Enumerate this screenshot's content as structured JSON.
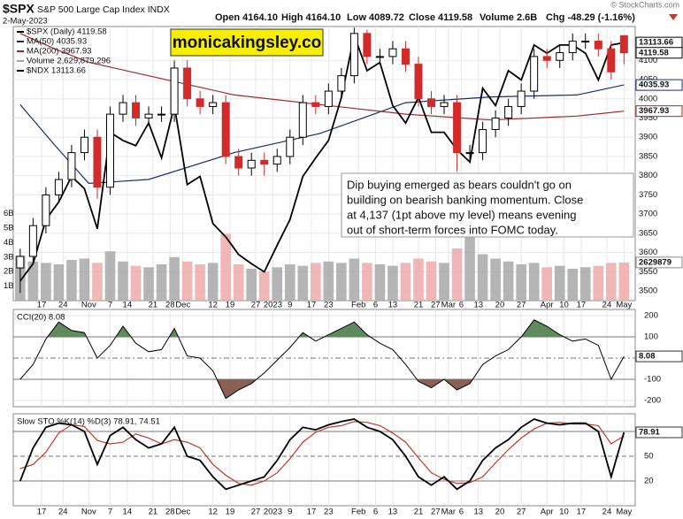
{
  "chart_data": {
    "type": "candlestick",
    "title": "$SPX",
    "subtitle": "S&P 500 Large Cap Index INDX",
    "date": "2-May-2023",
    "header": [
      "Open 4164.10",
      "High 4164.10",
      "Low 4089.72",
      "Close 4119.58",
      "Volume 2.6B",
      "Chg -48.29 (-1.16%)"
    ],
    "credit": "© StockCharts.com",
    "watermark": "monicakingsley.co",
    "annotation": [
      "Dip buying emerged as bears couldn't go on",
      "building on bearish banking momentum. Close",
      "at 4,137 (1pt above my level) means evening",
      "out of short-term forces into FOMC today."
    ],
    "name": "$SPX (Daily) 4119.58",
    "up_color": "#000000",
    "down_color": "#d22b2b",
    "grid": true,
    "xlim": [
      -1,
      143
    ],
    "xticks": [
      {
        "value": 5,
        "label": "17"
      },
      {
        "value": 10,
        "label": "24"
      },
      {
        "value": 16,
        "label": "Nov"
      },
      {
        "value": 21,
        "label": "7"
      },
      {
        "value": 25,
        "label": "14"
      },
      {
        "value": 31,
        "label": "21"
      },
      {
        "value": 35,
        "label": "28"
      },
      {
        "value": 38,
        "label": "Dec"
      },
      {
        "value": 45,
        "label": "12"
      },
      {
        "value": 49,
        "label": "19"
      },
      {
        "value": 55,
        "label": "27"
      },
      {
        "value": 59,
        "label": "2023"
      },
      {
        "value": 63,
        "label": "9"
      },
      {
        "value": 68,
        "label": "17"
      },
      {
        "value": 72,
        "label": "23"
      },
      {
        "value": 79,
        "label": "Feb"
      },
      {
        "value": 83,
        "label": "6"
      },
      {
        "value": 87,
        "label": "13"
      },
      {
        "value": 93,
        "label": "21"
      },
      {
        "value": 97,
        "label": "27"
      },
      {
        "value": 100,
        "label": "Mar"
      },
      {
        "value": 103,
        "label": "6"
      },
      {
        "value": 107,
        "label": "13"
      },
      {
        "value": 112,
        "label": "20"
      },
      {
        "value": 117,
        "label": "27"
      },
      {
        "value": 123,
        "label": "Apr"
      },
      {
        "value": 127,
        "label": "10"
      },
      {
        "value": 131,
        "label": "17"
      },
      {
        "value": 137,
        "label": "24"
      },
      {
        "value": 141,
        "label": "May"
      }
    ],
    "ylim": [
      3475,
      4188
    ],
    "yticks": [
      3500,
      3550,
      3600,
      3650,
      3700,
      3750,
      3800,
      3850,
      3900,
      3950,
      4000,
      4050,
      4100
    ],
    "x": [
      0,
      3,
      6,
      9,
      12,
      15,
      18,
      21,
      24,
      27,
      30,
      33,
      36,
      39,
      42,
      45,
      48,
      51,
      54,
      57,
      60,
      63,
      66,
      69,
      72,
      75,
      78,
      81,
      84,
      87,
      90,
      93,
      96,
      99,
      102,
      105,
      108,
      111,
      114,
      117,
      120,
      123,
      126,
      129,
      132,
      135,
      138,
      141
    ],
    "open": [
      3560,
      3590,
      3670,
      3750,
      3790,
      3860,
      3900,
      3770,
      3960,
      3990,
      3950,
      3960,
      3960,
      4080,
      4000,
      3980,
      3990,
      3850,
      3820,
      3840,
      3830,
      3850,
      3900,
      3990,
      3980,
      4020,
      4060,
      4170,
      4110,
      4110,
      4130,
      4090,
      4000,
      3980,
      3990,
      3860,
      3860,
      3920,
      3950,
      3980,
      4020,
      4110,
      4100,
      4120,
      4150,
      4150,
      4130,
      4164.1
    ],
    "high": [
      3610,
      3690,
      3770,
      3810,
      3880,
      3920,
      3920,
      3980,
      4010,
      4010,
      3980,
      3980,
      4100,
      4100,
      4020,
      4010,
      4010,
      3870,
      3860,
      3860,
      3870,
      3920,
      4010,
      4010,
      4040,
      4080,
      4185,
      4180,
      4130,
      4150,
      4150,
      4110,
      4020,
      4010,
      4010,
      3880,
      3940,
      3970,
      4000,
      4040,
      4130,
      4130,
      4140,
      4170,
      4170,
      4170,
      4150,
      4164.1
    ],
    "low": [
      3495,
      3570,
      3650,
      3730,
      3770,
      3840,
      3740,
      3750,
      3940,
      3930,
      3930,
      3940,
      3940,
      3980,
      3960,
      3960,
      3830,
      3800,
      3800,
      3800,
      3810,
      3830,
      3880,
      3960,
      3960,
      4000,
      4040,
      4090,
      4090,
      4090,
      4070,
      3980,
      3960,
      3960,
      3810,
      3840,
      3840,
      3900,
      3930,
      3960,
      4000,
      4080,
      4080,
      4100,
      4130,
      4110,
      4050,
      4089.72
    ],
    "close": [
      3590,
      3670,
      3750,
      3790,
      3860,
      3900,
      3770,
      3960,
      3990,
      3950,
      3960,
      3960,
      4080,
      4000,
      3980,
      3990,
      3850,
      3820,
      3840,
      3830,
      3850,
      3900,
      3990,
      3980,
      4020,
      4060,
      4170,
      4110,
      4110,
      4130,
      4090,
      4000,
      3980,
      3990,
      3860,
      3860,
      3920,
      3950,
      3980,
      4020,
      4110,
      4100,
      4120,
      4150,
      4150,
      4130,
      4070,
      4119.58
    ],
    "overlays": [
      {
        "name": "MA(50) 4035.93",
        "color": "#1c2c6e",
        "x": [
          0,
          8,
          16,
          30,
          50,
          70,
          90,
          110,
          130,
          141
        ],
        "values": [
          3985,
          3880,
          3780,
          3790,
          3860,
          3910,
          3990,
          4005,
          4010,
          4035.93
        ]
      },
      {
        "name": "MA(200) 3967.93",
        "color": "#a02828",
        "x": [
          0,
          8,
          16,
          30,
          50,
          70,
          90,
          110,
          130,
          141
        ],
        "values": [
          4170,
          4130,
          4095,
          4060,
          4010,
          3985,
          3960,
          3945,
          3955,
          3967.93
        ]
      }
    ],
    "y2lim": [
      10600,
      13270
    ],
    "ndx": {
      "name": "$NDX 13113.66",
      "color": "#000000",
      "axis": "y2",
      "values": [
        10790,
        10960,
        11390,
        11560,
        11810,
        11690,
        11300,
        12240,
        12160,
        12110,
        12330,
        11990,
        12500,
        11730,
        11810,
        11350,
        11220,
        11050,
        10960,
        10880,
        11140,
        11390,
        11810,
        11990,
        12160,
        12580,
        13180,
        12840,
        12920,
        12500,
        12330,
        12580,
        12240,
        12240,
        12070,
        11950,
        12670,
        12500,
        12840,
        12750,
        13090,
        13010,
        13090,
        13090,
        13010,
        12750,
        13090,
        13113.66
      ]
    },
    "volume": {
      "name": "Volume 2,629,879,296",
      "callout_label": "2629879",
      "up_color": "#a8a8a8",
      "down_color": "#eeaaaa",
      "ylim": [
        0,
        18900000000
      ],
      "yticks": [
        {
          "value": 1000000000,
          "label": "1B"
        },
        {
          "value": 2000000000,
          "label": "2B"
        },
        {
          "value": 3000000000,
          "label": "3B"
        },
        {
          "value": 4000000000,
          "label": "4B"
        },
        {
          "value": 5000000000,
          "label": "5B"
        },
        {
          "value": 6000000000,
          "label": "6B"
        }
      ],
      "values": [
        3100000000.0,
        2700000000.0,
        2600000000.0,
        2500000000.0,
        2800000000.0,
        2900000000.0,
        2600000000.0,
        3400000000.0,
        2700000000.0,
        2400000000.0,
        2300000000.0,
        2500000000.0,
        3000000000.0,
        2700000000.0,
        2500000000.0,
        2600000000.0,
        4600000000.0,
        2500000000.0,
        2200000000.0,
        2000000000.0,
        2300000000.0,
        2500000000.0,
        2400000000.0,
        2600000000.0,
        2700000000.0,
        2600000000.0,
        2900000000.0,
        2600000000.0,
        2500000000.0,
        2400000000.0,
        2600000000.0,
        2900000000.0,
        2700000000.0,
        2600000000.0,
        3600000000.0,
        4800000000.0,
        3200000000.0,
        2900000000.0,
        2700000000.0,
        2500000000.0,
        2600000000.0,
        2300000000.0,
        2400000000.0,
        2200000000.0,
        2300000000.0,
        2400000000.0,
        2600000000.0,
        2629879296
      ]
    },
    "cci": {
      "title": "CCI(20) 8.08",
      "color": "#000000",
      "upper_fill": "#5e8a5e",
      "lower_fill": "#8c5f55",
      "ylim": [
        -229,
        229
      ],
      "yticks": [
        -200,
        -100,
        100,
        200
      ],
      "ytick_styles": [
        "light",
        "solid",
        "solid",
        "light"
      ],
      "fill_levels": [
        100,
        -100
      ],
      "values": [
        -100,
        -30,
        90,
        170,
        130,
        120,
        0,
        60,
        150,
        70,
        30,
        40,
        140,
        10,
        0,
        -60,
        -190,
        -150,
        -120,
        -70,
        -10,
        50,
        120,
        80,
        110,
        140,
        170,
        110,
        70,
        40,
        -30,
        -110,
        -140,
        -100,
        -150,
        -120,
        -30,
        10,
        40,
        100,
        180,
        150,
        110,
        80,
        90,
        60,
        -100,
        8.08
      ]
    },
    "sto": {
      "title": "Slow STO %K(14) %D(3) 78.91, 74.51",
      "ylim": [
        -10,
        101.4
      ],
      "yticks": [
        20,
        50,
        80
      ],
      "ytick_styles": [
        "solid",
        "dashed",
        "solid"
      ],
      "series": [
        {
          "name": "%K(14)",
          "color": "#000000",
          "values": [
            20,
            60,
            85,
            90,
            88,
            80,
            40,
            75,
            85,
            70,
            60,
            65,
            85,
            50,
            45,
            25,
            10,
            15,
            20,
            25,
            45,
            70,
            85,
            82,
            88,
            92,
            95,
            85,
            80,
            70,
            50,
            25,
            15,
            25,
            10,
            20,
            45,
            60,
            70,
            85,
            95,
            90,
            88,
            90,
            90,
            80,
            25,
            78.91
          ]
        },
        {
          "name": "%D(3)",
          "color": "#c0392b",
          "values": [
            35,
            40,
            55,
            78,
            88,
            86,
            69,
            65,
            67,
            77,
            72,
            65,
            70,
            67,
            60,
            40,
            27,
            17,
            15,
            20,
            30,
            47,
            67,
            79,
            85,
            87,
            92,
            91,
            87,
            78,
            67,
            48,
            30,
            22,
            17,
            18,
            25,
            42,
            58,
            72,
            83,
            90,
            91,
            89,
            89,
            87,
            65,
            74.51
          ]
        }
      ]
    }
  }
}
